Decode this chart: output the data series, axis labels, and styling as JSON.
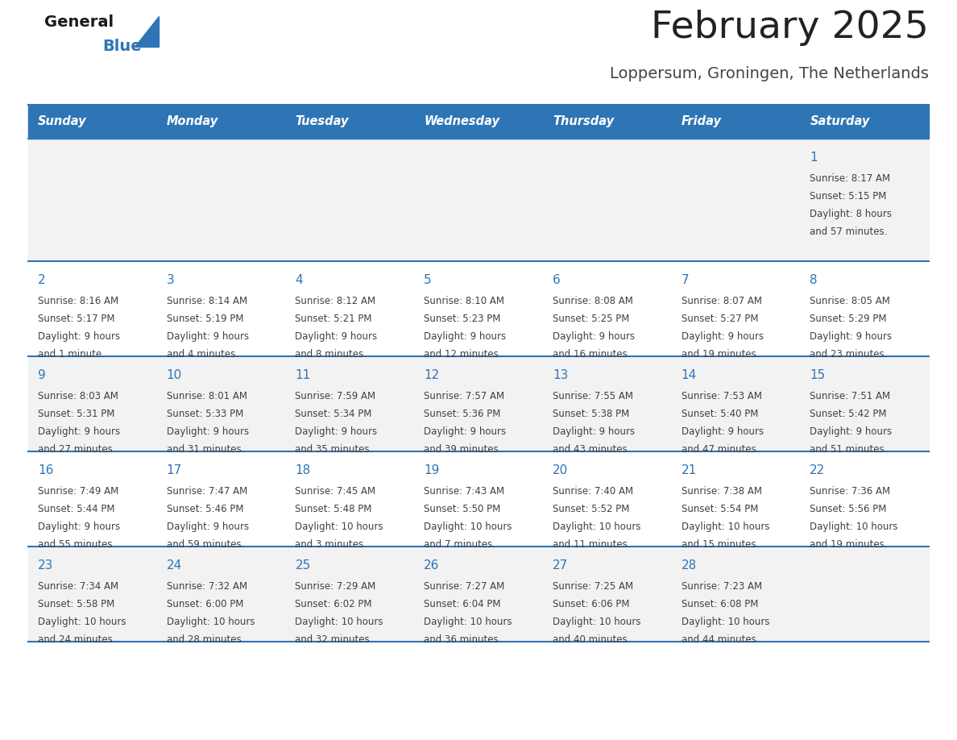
{
  "title": "February 2025",
  "subtitle": "Loppersum, Groningen, The Netherlands",
  "header_bg_color": "#2E75B6",
  "header_text_color": "#FFFFFF",
  "day_names": [
    "Sunday",
    "Monday",
    "Tuesday",
    "Wednesday",
    "Thursday",
    "Friday",
    "Saturday"
  ],
  "row_bg_colors": [
    "#F2F2F2",
    "#FFFFFF",
    "#F2F2F2",
    "#FFFFFF",
    "#F2F2F2"
  ],
  "divider_color": "#2E75B6",
  "cell_text_color": "#404040",
  "day_num_color": "#2E75B6",
  "title_color": "#222222",
  "subtitle_color": "#444444",
  "calendar_data": [
    [
      {
        "day": null,
        "sunrise": null,
        "sunset": null,
        "daylight": null
      },
      {
        "day": null,
        "sunrise": null,
        "sunset": null,
        "daylight": null
      },
      {
        "day": null,
        "sunrise": null,
        "sunset": null,
        "daylight": null
      },
      {
        "day": null,
        "sunrise": null,
        "sunset": null,
        "daylight": null
      },
      {
        "day": null,
        "sunrise": null,
        "sunset": null,
        "daylight": null
      },
      {
        "day": null,
        "sunrise": null,
        "sunset": null,
        "daylight": null
      },
      {
        "day": 1,
        "sunrise": "8:17 AM",
        "sunset": "5:15 PM",
        "daylight": "8 hours\nand 57 minutes."
      }
    ],
    [
      {
        "day": 2,
        "sunrise": "8:16 AM",
        "sunset": "5:17 PM",
        "daylight": "9 hours\nand 1 minute."
      },
      {
        "day": 3,
        "sunrise": "8:14 AM",
        "sunset": "5:19 PM",
        "daylight": "9 hours\nand 4 minutes."
      },
      {
        "day": 4,
        "sunrise": "8:12 AM",
        "sunset": "5:21 PM",
        "daylight": "9 hours\nand 8 minutes."
      },
      {
        "day": 5,
        "sunrise": "8:10 AM",
        "sunset": "5:23 PM",
        "daylight": "9 hours\nand 12 minutes."
      },
      {
        "day": 6,
        "sunrise": "8:08 AM",
        "sunset": "5:25 PM",
        "daylight": "9 hours\nand 16 minutes."
      },
      {
        "day": 7,
        "sunrise": "8:07 AM",
        "sunset": "5:27 PM",
        "daylight": "9 hours\nand 19 minutes."
      },
      {
        "day": 8,
        "sunrise": "8:05 AM",
        "sunset": "5:29 PM",
        "daylight": "9 hours\nand 23 minutes."
      }
    ],
    [
      {
        "day": 9,
        "sunrise": "8:03 AM",
        "sunset": "5:31 PM",
        "daylight": "9 hours\nand 27 minutes."
      },
      {
        "day": 10,
        "sunrise": "8:01 AM",
        "sunset": "5:33 PM",
        "daylight": "9 hours\nand 31 minutes."
      },
      {
        "day": 11,
        "sunrise": "7:59 AM",
        "sunset": "5:34 PM",
        "daylight": "9 hours\nand 35 minutes."
      },
      {
        "day": 12,
        "sunrise": "7:57 AM",
        "sunset": "5:36 PM",
        "daylight": "9 hours\nand 39 minutes."
      },
      {
        "day": 13,
        "sunrise": "7:55 AM",
        "sunset": "5:38 PM",
        "daylight": "9 hours\nand 43 minutes."
      },
      {
        "day": 14,
        "sunrise": "7:53 AM",
        "sunset": "5:40 PM",
        "daylight": "9 hours\nand 47 minutes."
      },
      {
        "day": 15,
        "sunrise": "7:51 AM",
        "sunset": "5:42 PM",
        "daylight": "9 hours\nand 51 minutes."
      }
    ],
    [
      {
        "day": 16,
        "sunrise": "7:49 AM",
        "sunset": "5:44 PM",
        "daylight": "9 hours\nand 55 minutes."
      },
      {
        "day": 17,
        "sunrise": "7:47 AM",
        "sunset": "5:46 PM",
        "daylight": "9 hours\nand 59 minutes."
      },
      {
        "day": 18,
        "sunrise": "7:45 AM",
        "sunset": "5:48 PM",
        "daylight": "10 hours\nand 3 minutes."
      },
      {
        "day": 19,
        "sunrise": "7:43 AM",
        "sunset": "5:50 PM",
        "daylight": "10 hours\nand 7 minutes."
      },
      {
        "day": 20,
        "sunrise": "7:40 AM",
        "sunset": "5:52 PM",
        "daylight": "10 hours\nand 11 minutes."
      },
      {
        "day": 21,
        "sunrise": "7:38 AM",
        "sunset": "5:54 PM",
        "daylight": "10 hours\nand 15 minutes."
      },
      {
        "day": 22,
        "sunrise": "7:36 AM",
        "sunset": "5:56 PM",
        "daylight": "10 hours\nand 19 minutes."
      }
    ],
    [
      {
        "day": 23,
        "sunrise": "7:34 AM",
        "sunset": "5:58 PM",
        "daylight": "10 hours\nand 24 minutes."
      },
      {
        "day": 24,
        "sunrise": "7:32 AM",
        "sunset": "6:00 PM",
        "daylight": "10 hours\nand 28 minutes."
      },
      {
        "day": 25,
        "sunrise": "7:29 AM",
        "sunset": "6:02 PM",
        "daylight": "10 hours\nand 32 minutes."
      },
      {
        "day": 26,
        "sunrise": "7:27 AM",
        "sunset": "6:04 PM",
        "daylight": "10 hours\nand 36 minutes."
      },
      {
        "day": 27,
        "sunrise": "7:25 AM",
        "sunset": "6:06 PM",
        "daylight": "10 hours\nand 40 minutes."
      },
      {
        "day": 28,
        "sunrise": "7:23 AM",
        "sunset": "6:08 PM",
        "daylight": "10 hours\nand 44 minutes."
      },
      {
        "day": null,
        "sunrise": null,
        "sunset": null,
        "daylight": null
      }
    ]
  ]
}
